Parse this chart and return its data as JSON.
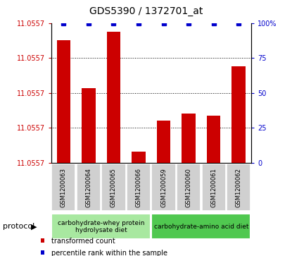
{
  "title": "GDS5390 / 1372701_at",
  "samples": [
    "GSM1200063",
    "GSM1200064",
    "GSM1200065",
    "GSM1200066",
    "GSM1200059",
    "GSM1200060",
    "GSM1200061",
    "GSM1200062"
  ],
  "bar_color": "#cc0000",
  "blue_color": "#0000cc",
  "bar_actual_values": [
    11.0557395,
    11.0557241,
    11.0557421,
    11.0557035,
    11.0557136,
    11.0557157,
    11.0557152,
    11.055731
  ],
  "percentile_values": [
    100,
    100,
    100,
    100,
    100,
    100,
    100,
    100
  ],
  "y_min": 11.0557,
  "y_max": 11.055745,
  "y_tick_positions": [
    0.0,
    0.25,
    0.5,
    0.75,
    1.0
  ],
  "y_tick_labels_left": [
    "11.0557",
    "11.0557",
    "11.0557",
    "11.0557",
    "11.0557"
  ],
  "y_tick_labels_right": [
    "0",
    "25",
    "50",
    "75",
    "100%"
  ],
  "protocol_groups": [
    {
      "label": "carbohydrate-whey protein\nhydrolysate diet",
      "start": 0,
      "end": 4,
      "color": "#a8e8a0"
    },
    {
      "label": "carbohydrate-amino acid diet",
      "start": 4,
      "end": 8,
      "color": "#50c850"
    }
  ],
  "legend_bar_label": "transformed count",
  "legend_dot_label": "percentile rank within the sample",
  "protocol_label": "protocol",
  "sample_box_color": "#d0d0d0",
  "grid_dotted_color": "#000000",
  "axis_left_color": "#cc0000",
  "axis_right_color": "#0000cc",
  "title_fontsize": 10,
  "tick_fontsize": 7,
  "sample_fontsize": 6,
  "proto_fontsize": 6.5,
  "legend_fontsize": 7
}
